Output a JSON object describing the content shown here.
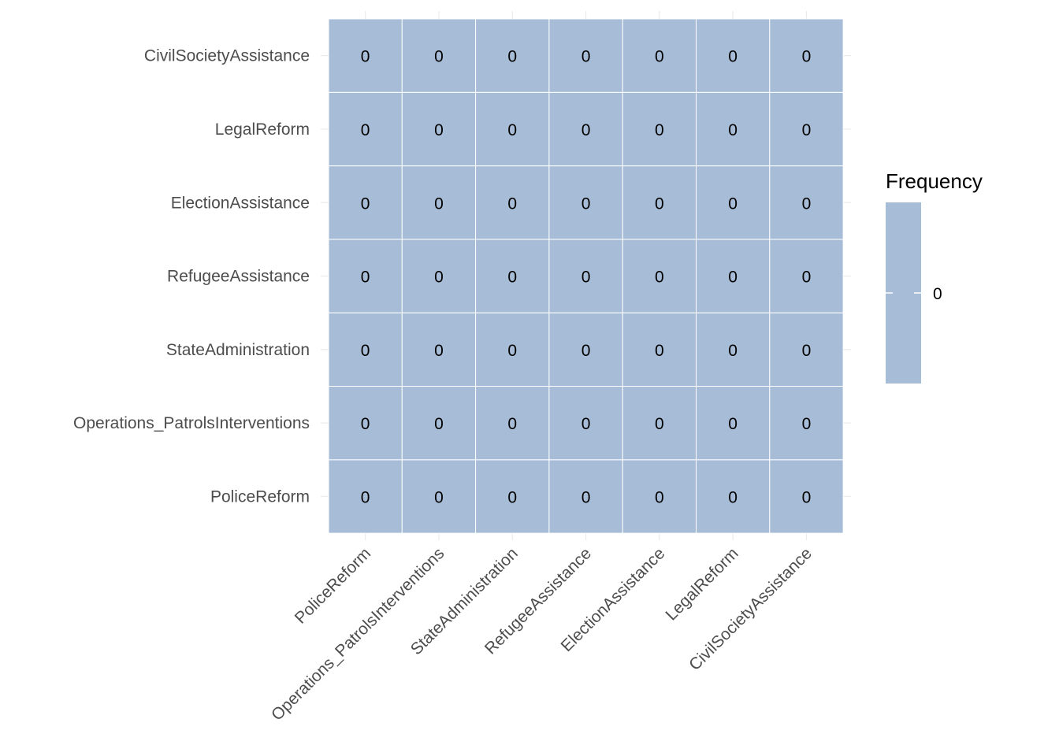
{
  "chart_data": {
    "type": "heatmap",
    "x_categories": [
      "PoliceReform",
      "Operations_PatrolsInterventions",
      "StateAdministration",
      "RefugeeAssistance",
      "ElectionAssistance",
      "LegalReform",
      "CivilSocietyAssistance"
    ],
    "y_categories": [
      "PoliceReform",
      "Operations_PatrolsInterventions",
      "StateAdministration",
      "RefugeeAssistance",
      "ElectionAssistance",
      "LegalReform",
      "CivilSocietyAssistance"
    ],
    "values": [
      [
        0,
        0,
        0,
        0,
        0,
        0,
        0
      ],
      [
        0,
        0,
        0,
        0,
        0,
        0,
        0
      ],
      [
        0,
        0,
        0,
        0,
        0,
        0,
        0
      ],
      [
        0,
        0,
        0,
        0,
        0,
        0,
        0
      ],
      [
        0,
        0,
        0,
        0,
        0,
        0,
        0
      ],
      [
        0,
        0,
        0,
        0,
        0,
        0,
        0
      ],
      [
        0,
        0,
        0,
        0,
        0,
        0,
        0
      ]
    ],
    "legend": {
      "title": "Frequency",
      "breaks": [
        0
      ],
      "placement": "right"
    },
    "colors": {
      "fill": "#a7bcd6",
      "cell_border": "#ffffff",
      "grid": "#ebebeb"
    },
    "grid": true
  }
}
